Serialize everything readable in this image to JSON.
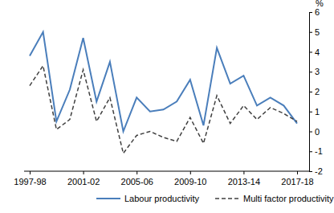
{
  "chart_data": {
    "type": "line",
    "ylabel": "%",
    "categories": [
      "1997-98",
      null,
      null,
      null,
      "2001-02",
      null,
      null,
      null,
      "2005-06",
      null,
      null,
      null,
      "2009-10",
      null,
      null,
      null,
      "2013-14",
      null,
      null,
      null,
      "2017-18"
    ],
    "series": [
      {
        "name": "Labour productivity",
        "color": "#4a7ebb",
        "line_style": "solid",
        "values": [
          3.8,
          5.0,
          0.5,
          2.1,
          4.7,
          1.5,
          3.5,
          0.0,
          1.7,
          1.0,
          1.1,
          1.5,
          2.6,
          0.3,
          4.2,
          2.4,
          2.8,
          1.3,
          1.7,
          1.3,
          0.4
        ]
      },
      {
        "name": "Multi factor productivity",
        "color": "#404040",
        "line_style": "dashed",
        "values": [
          2.3,
          3.3,
          0.1,
          0.6,
          3.1,
          0.5,
          1.7,
          -1.1,
          -0.2,
          0.0,
          -0.3,
          -0.5,
          0.7,
          -0.6,
          1.8,
          0.4,
          1.3,
          0.6,
          1.2,
          0.9,
          0.5
        ]
      }
    ],
    "ylim": [
      -2,
      6
    ],
    "yticks": [
      -2,
      -1,
      0,
      1,
      2,
      3,
      4,
      5,
      6
    ],
    "grid": false,
    "legend": "bottom"
  }
}
